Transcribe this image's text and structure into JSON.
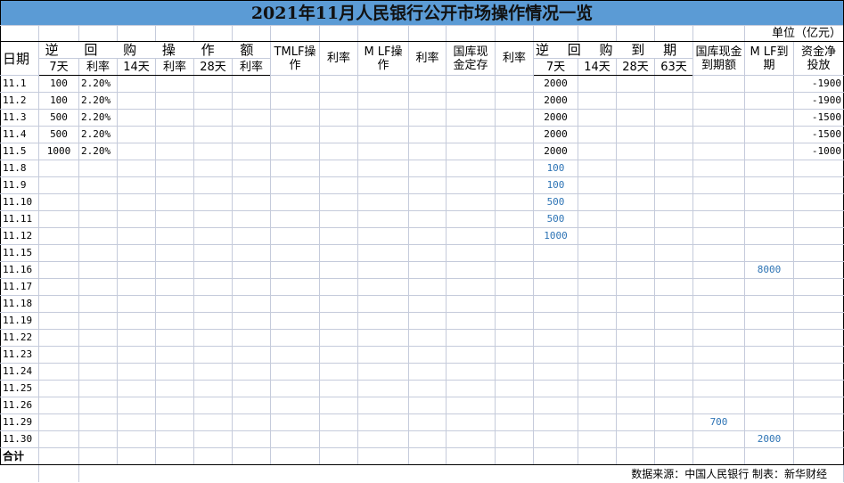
{
  "title": "2021年11月人民银行公开市场操作情况一览",
  "unit": "单位（亿元）",
  "headers": {
    "date": "日期",
    "reverse_repo_ops": "逆 回 购 操 作 额",
    "d7": "7天",
    "rate": "利率",
    "d14": "14天",
    "d28": "28天",
    "d63": "63天",
    "tmlf_ops": "TMLF操作",
    "mlf_ops": "M LF操作",
    "treasury_deposit": "国库现金定存",
    "reverse_repo_maturity": "逆 回 购 到 期 额",
    "treasury_maturity": "国库现金到期额",
    "mlf_maturity": "M LF到期",
    "net_injection": "资金净投放"
  },
  "rows": [
    {
      "date": "11.1",
      "values": [
        "100",
        "2.20%",
        "",
        "",
        "",
        "",
        "",
        "",
        "",
        "",
        "",
        "",
        "2000",
        "",
        "",
        "",
        "",
        "",
        "-1900"
      ],
      "blue": []
    },
    {
      "date": "11.2",
      "values": [
        "100",
        "2.20%",
        "",
        "",
        "",
        "",
        "",
        "",
        "",
        "",
        "",
        "",
        "2000",
        "",
        "",
        "",
        "",
        "",
        "-1900"
      ],
      "blue": []
    },
    {
      "date": "11.3",
      "values": [
        "500",
        "2.20%",
        "",
        "",
        "",
        "",
        "",
        "",
        "",
        "",
        "",
        "",
        "2000",
        "",
        "",
        "",
        "",
        "",
        "-1500"
      ],
      "blue": []
    },
    {
      "date": "11.4",
      "values": [
        "500",
        "2.20%",
        "",
        "",
        "",
        "",
        "",
        "",
        "",
        "",
        "",
        "",
        "2000",
        "",
        "",
        "",
        "",
        "",
        "-1500"
      ],
      "blue": []
    },
    {
      "date": "11.5",
      "values": [
        "1000",
        "2.20%",
        "",
        "",
        "",
        "",
        "",
        "",
        "",
        "",
        "",
        "",
        "2000",
        "",
        "",
        "",
        "",
        "",
        "-1000"
      ],
      "blue": []
    },
    {
      "date": "11.8",
      "values": [
        "",
        "",
        "",
        "",
        "",
        "",
        "",
        "",
        "",
        "",
        "",
        "",
        "100",
        "",
        "",
        "",
        "",
        "",
        ""
      ],
      "blue": [
        12
      ]
    },
    {
      "date": "11.9",
      "values": [
        "",
        "",
        "",
        "",
        "",
        "",
        "",
        "",
        "",
        "",
        "",
        "",
        "100",
        "",
        "",
        "",
        "",
        "",
        ""
      ],
      "blue": [
        12
      ]
    },
    {
      "date": "11.10",
      "values": [
        "",
        "",
        "",
        "",
        "",
        "",
        "",
        "",
        "",
        "",
        "",
        "",
        "500",
        "",
        "",
        "",
        "",
        "",
        ""
      ],
      "blue": [
        12
      ]
    },
    {
      "date": "11.11",
      "values": [
        "",
        "",
        "",
        "",
        "",
        "",
        "",
        "",
        "",
        "",
        "",
        "",
        "500",
        "",
        "",
        "",
        "",
        "",
        ""
      ],
      "blue": [
        12
      ]
    },
    {
      "date": "11.12",
      "values": [
        "",
        "",
        "",
        "",
        "",
        "",
        "",
        "",
        "",
        "",
        "",
        "",
        "1000",
        "",
        "",
        "",
        "",
        "",
        ""
      ],
      "blue": [
        12
      ]
    },
    {
      "date": "11.15",
      "values": [
        "",
        "",
        "",
        "",
        "",
        "",
        "",
        "",
        "",
        "",
        "",
        "",
        "",
        "",
        "",
        "",
        "",
        "",
        ""
      ],
      "blue": []
    },
    {
      "date": "11.16",
      "values": [
        "",
        "",
        "",
        "",
        "",
        "",
        "",
        "",
        "",
        "",
        "",
        "",
        "",
        "",
        "",
        "",
        "",
        "8000",
        ""
      ],
      "blue": [
        17
      ]
    },
    {
      "date": "11.17",
      "values": [
        "",
        "",
        "",
        "",
        "",
        "",
        "",
        "",
        "",
        "",
        "",
        "",
        "",
        "",
        "",
        "",
        "",
        "",
        ""
      ],
      "blue": []
    },
    {
      "date": "11.18",
      "values": [
        "",
        "",
        "",
        "",
        "",
        "",
        "",
        "",
        "",
        "",
        "",
        "",
        "",
        "",
        "",
        "",
        "",
        "",
        ""
      ],
      "blue": []
    },
    {
      "date": "11.19",
      "values": [
        "",
        "",
        "",
        "",
        "",
        "",
        "",
        "",
        "",
        "",
        "",
        "",
        "",
        "",
        "",
        "",
        "",
        "",
        ""
      ],
      "blue": []
    },
    {
      "date": "11.22",
      "values": [
        "",
        "",
        "",
        "",
        "",
        "",
        "",
        "",
        "",
        "",
        "",
        "",
        "",
        "",
        "",
        "",
        "",
        "",
        ""
      ],
      "blue": []
    },
    {
      "date": "11.23",
      "values": [
        "",
        "",
        "",
        "",
        "",
        "",
        "",
        "",
        "",
        "",
        "",
        "",
        "",
        "",
        "",
        "",
        "",
        "",
        ""
      ],
      "blue": []
    },
    {
      "date": "11.24",
      "values": [
        "",
        "",
        "",
        "",
        "",
        "",
        "",
        "",
        "",
        "",
        "",
        "",
        "",
        "",
        "",
        "",
        "",
        "",
        ""
      ],
      "blue": []
    },
    {
      "date": "11.25",
      "values": [
        "",
        "",
        "",
        "",
        "",
        "",
        "",
        "",
        "",
        "",
        "",
        "",
        "",
        "",
        "",
        "",
        "",
        "",
        ""
      ],
      "blue": []
    },
    {
      "date": "11.26",
      "values": [
        "",
        "",
        "",
        "",
        "",
        "",
        "",
        "",
        "",
        "",
        "",
        "",
        "",
        "",
        "",
        "",
        "",
        "",
        ""
      ],
      "blue": []
    },
    {
      "date": "11.29",
      "values": [
        "",
        "",
        "",
        "",
        "",
        "",
        "",
        "",
        "",
        "",
        "",
        "",
        "",
        "",
        "",
        "",
        "700",
        "",
        ""
      ],
      "blue": [
        16
      ]
    },
    {
      "date": "11.30",
      "values": [
        "",
        "",
        "",
        "",
        "",
        "",
        "",
        "",
        "",
        "",
        "",
        "",
        "",
        "",
        "",
        "",
        "",
        "2000",
        ""
      ],
      "blue": [
        17
      ]
    }
  ],
  "total_label": "合计",
  "footer": "数据来源：中国人民银行  制表：新华财经",
  "colors": {
    "title_bg": "#5b9bd5",
    "highlight_text": "#2e74b5",
    "grid": "#c5cbdb"
  }
}
